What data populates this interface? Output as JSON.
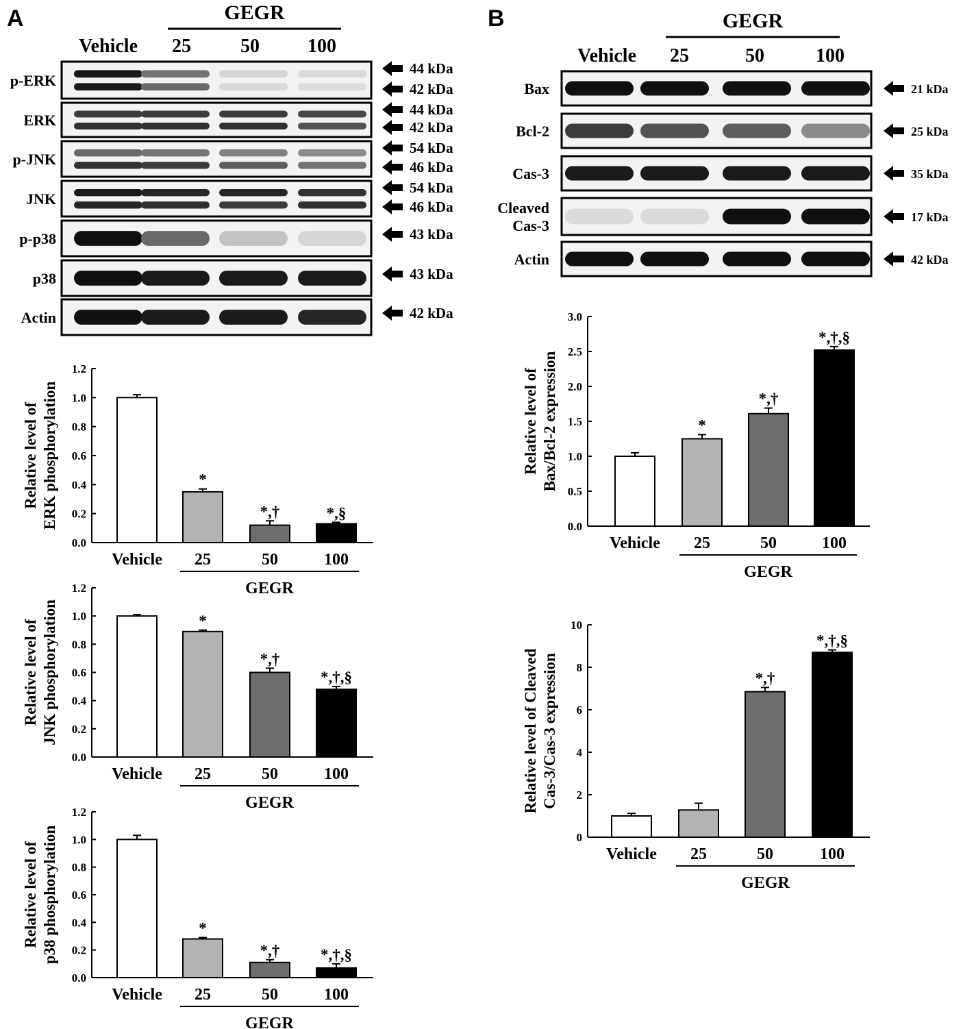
{
  "panel_a": {
    "letter": "A",
    "blot": {
      "group_label": "GEGR",
      "lane_labels": [
        "Vehicle",
        "25",
        "50",
        "100"
      ],
      "rows": [
        {
          "name": "p-ERK",
          "markers": [
            "44 kDa",
            "42 kDa"
          ],
          "bands": [
            [
              0.95,
              0.55,
              0.12,
              0.1
            ],
            [
              0.95,
              0.6,
              0.1,
              0.08
            ]
          ]
        },
        {
          "name": "ERK",
          "markers": [
            "44 kDa",
            "42 kDa"
          ],
          "bands": [
            [
              0.8,
              0.8,
              0.8,
              0.75
            ],
            [
              0.85,
              0.85,
              0.85,
              0.7
            ]
          ]
        },
        {
          "name": "p-JNK",
          "markers": [
            "54 kDa",
            "46 kDa"
          ],
          "bands": [
            [
              0.6,
              0.55,
              0.5,
              0.45
            ],
            [
              0.85,
              0.8,
              0.65,
              0.55
            ]
          ]
        },
        {
          "name": "JNK",
          "markers": [
            "54 kDa",
            "46 kDa"
          ],
          "bands": [
            [
              0.95,
              0.9,
              0.9,
              0.85
            ],
            [
              0.9,
              0.85,
              0.8,
              0.85
            ]
          ]
        },
        {
          "name": "p-p38",
          "markers": [
            "43 kDa"
          ],
          "bands": [
            [
              1.0,
              0.6,
              0.2,
              0.12
            ]
          ]
        },
        {
          "name": "p38",
          "markers": [
            "43 kDa"
          ],
          "bands": [
            [
              1.0,
              0.95,
              0.95,
              0.95
            ]
          ]
        },
        {
          "name": "Actin",
          "markers": [
            "42 kDa"
          ],
          "bands": [
            [
              1.0,
              0.95,
              0.95,
              0.9
            ]
          ]
        }
      ]
    }
  },
  "panel_b": {
    "letter": "B",
    "blot": {
      "group_label": "GEGR",
      "lane_labels": [
        "Vehicle",
        "25",
        "50",
        "100"
      ],
      "rows": [
        {
          "name": "Bax",
          "markers": [
            "21 kDa"
          ],
          "bands": [
            [
              1.0,
              1.0,
              1.0,
              1.0
            ]
          ]
        },
        {
          "name": "Bcl-2",
          "markers": [
            "25 kDa"
          ],
          "bands": [
            [
              0.8,
              0.7,
              0.65,
              0.45
            ]
          ]
        },
        {
          "name": "Cas-3",
          "markers": [
            "35 kDa"
          ],
          "bands": [
            [
              0.95,
              0.95,
              0.95,
              0.95
            ]
          ]
        },
        {
          "name": "Cleaved Cas-3",
          "name_lines": [
            "Cleaved",
            "Cas-3"
          ],
          "markers": [
            "17 kDa"
          ],
          "bands": [
            [
              0.1,
              0.1,
              1.0,
              1.0
            ]
          ]
        },
        {
          "name": "Actin",
          "markers": [
            "42 kDa"
          ],
          "bands": [
            [
              1.0,
              1.0,
              1.0,
              1.0
            ]
          ]
        }
      ]
    }
  },
  "chart_data": [
    {
      "id": "erk",
      "panel": "A",
      "type": "bar",
      "categories": [
        "Vehicle",
        "25",
        "50",
        "100"
      ],
      "group_label": "GEGR",
      "values": [
        1.0,
        0.35,
        0.12,
        0.13
      ],
      "errors": [
        0.02,
        0.02,
        0.03,
        0.01
      ],
      "significance": [
        "",
        "*",
        "*,†",
        "*,§"
      ],
      "colors": [
        "#ffffff",
        "#b3b3b3",
        "#6e6e6e",
        "#000000"
      ],
      "ylabel": [
        "Relative level of",
        "ERK phosphorylation"
      ],
      "ylim": [
        0,
        1.2
      ],
      "yticks": [
        "0.0",
        "0.2",
        "0.4",
        "0.6",
        "0.8",
        "1.0",
        "1.2"
      ]
    },
    {
      "id": "jnk",
      "panel": "A",
      "type": "bar",
      "categories": [
        "Vehicle",
        "25",
        "50",
        "100"
      ],
      "group_label": "GEGR",
      "values": [
        1.0,
        0.89,
        0.6,
        0.48
      ],
      "errors": [
        0.01,
        0.01,
        0.03,
        0.02
      ],
      "significance": [
        "",
        "*",
        "*,†",
        "*,†,§"
      ],
      "colors": [
        "#ffffff",
        "#b3b3b3",
        "#6e6e6e",
        "#000000"
      ],
      "ylabel": [
        "Relative level of",
        "JNK phosphorylation"
      ],
      "ylim": [
        0,
        1.2
      ],
      "yticks": [
        "0.0",
        "0.2",
        "0.4",
        "0.6",
        "0.8",
        "1.0",
        "1.2"
      ]
    },
    {
      "id": "p38",
      "panel": "A",
      "type": "bar",
      "categories": [
        "Vehicle",
        "25",
        "50",
        "100"
      ],
      "group_label": "GEGR",
      "values": [
        1.0,
        0.28,
        0.11,
        0.07
      ],
      "errors": [
        0.03,
        0.01,
        0.02,
        0.03
      ],
      "significance": [
        "",
        "*",
        "*,†",
        "*,†,§"
      ],
      "colors": [
        "#ffffff",
        "#b3b3b3",
        "#6e6e6e",
        "#000000"
      ],
      "ylabel": [
        "Relative level of",
        "p38 phosphorylation"
      ],
      "ylim": [
        0,
        1.2
      ],
      "yticks": [
        "0.0",
        "0.2",
        "0.4",
        "0.6",
        "0.8",
        "1.0",
        "1.2"
      ]
    },
    {
      "id": "baxbcl2",
      "panel": "B",
      "type": "bar",
      "categories": [
        "Vehicle",
        "25",
        "50",
        "100"
      ],
      "group_label": "GEGR",
      "values": [
        1.0,
        1.25,
        1.61,
        2.52
      ],
      "errors": [
        0.05,
        0.06,
        0.08,
        0.05
      ],
      "significance": [
        "",
        "*",
        "*,†",
        "*,†,§"
      ],
      "colors": [
        "#ffffff",
        "#b3b3b3",
        "#6e6e6e",
        "#000000"
      ],
      "ylabel": [
        "Relative level of",
        "Bax/Bcl-2 expression"
      ],
      "ylim": [
        0,
        3.0
      ],
      "yticks": [
        "0.0",
        "0.5",
        "1.0",
        "1.5",
        "2.0",
        "2.5",
        "3.0"
      ]
    },
    {
      "id": "cas3",
      "panel": "B",
      "type": "bar",
      "categories": [
        "Vehicle",
        "25",
        "50",
        "100"
      ],
      "group_label": "GEGR",
      "values": [
        1.0,
        1.28,
        6.85,
        8.7
      ],
      "errors": [
        0.12,
        0.32,
        0.2,
        0.12
      ],
      "significance": [
        "",
        "",
        "*,†",
        "*,†,§"
      ],
      "colors": [
        "#ffffff",
        "#b3b3b3",
        "#6e6e6e",
        "#000000"
      ],
      "ylabel": [
        "Relative level of  Cleaved",
        "Cas-3/Cas-3 expression"
      ],
      "ylim": [
        0,
        10
      ],
      "yticks": [
        "0",
        "2",
        "4",
        "6",
        "8",
        "10"
      ]
    }
  ]
}
